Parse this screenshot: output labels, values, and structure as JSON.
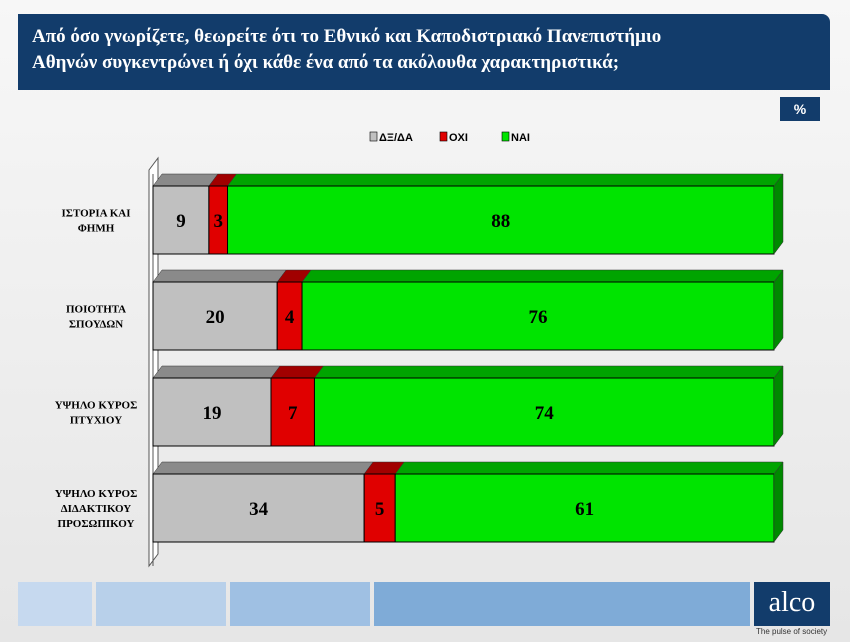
{
  "header": {
    "title_line1": "Από όσο γνωρίζετε, θεωρείτε ότι το Εθνικό και Καποδιστριακό Πανεπιστήμιο",
    "title_line2": "Αθηνών συγκεντρώνει ή όχι κάθε ένα από τα ακόλουθα χαρακτηριστικά;",
    "unit_badge": "%"
  },
  "colors": {
    "dk": "#c0c0c0",
    "oxi": "#e00000",
    "nai": "#00e400",
    "header_bg": "#123c6b"
  },
  "chart_data": {
    "type": "bar",
    "orientation": "horizontal",
    "stacked": true,
    "legend_position": "top",
    "xlim": [
      0,
      100
    ],
    "categories": [
      [
        "ΙΣΤΟΡΙΑ ΚΑΙ",
        "ΦΗΜΗ"
      ],
      [
        "ΠΟΙΟΤΗΤΑ",
        "ΣΠΟΥΔΩΝ"
      ],
      [
        "ΥΨΗΛΟ ΚΥΡΟΣ",
        "ΠΤΥΧΙΟΥ"
      ],
      [
        "ΥΨΗΛΟ ΚΥΡΟΣ",
        "ΔΙΔΑΚΤΙΚΟΥ",
        "ΠΡΟΣΩΠΙΚΟΥ"
      ]
    ],
    "series": [
      {
        "name": "ΔΞ/ΔΑ",
        "values": [
          9,
          20,
          19,
          34
        ]
      },
      {
        "name": "ΟΧΙ",
        "values": [
          3,
          4,
          7,
          5
        ]
      },
      {
        "name": "ΝΑΙ",
        "values": [
          88,
          76,
          74,
          61
        ]
      }
    ]
  },
  "footer": {
    "logo_text": "alco",
    "tagline": "The pulse of society"
  }
}
